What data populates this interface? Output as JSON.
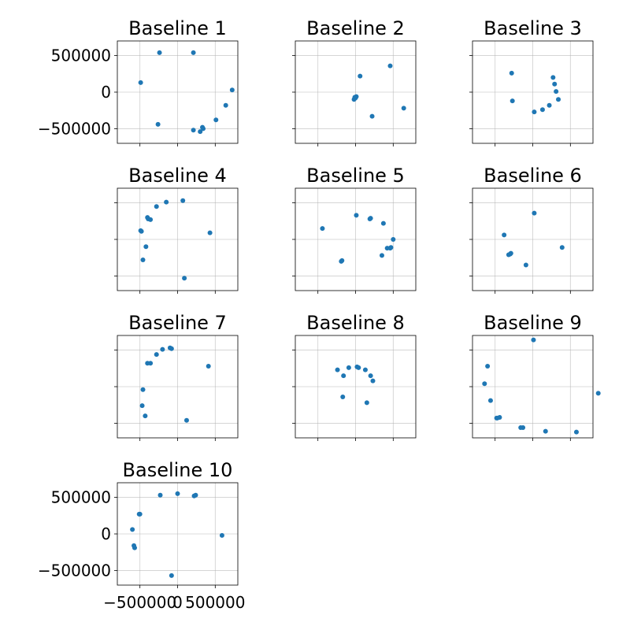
{
  "chart_data": [
    {
      "type": "scatter",
      "title": "Baseline 1",
      "xlim": [
        -800000,
        800000
      ],
      "ylim": [
        -700000,
        700000
      ],
      "grid": true,
      "color": "#1f77b4",
      "xticks": [],
      "yticks": [
        "500000",
        "0",
        "−500000"
      ],
      "x": [
        -240000,
        -490000,
        -260000,
        210000,
        300000,
        510000,
        640000,
        725000,
        210000,
        330000,
        340000
      ],
      "y": [
        540000,
        130000,
        -440000,
        -520000,
        -540000,
        -380000,
        -180000,
        30000,
        540000,
        -480000,
        -500000
      ]
    },
    {
      "type": "scatter",
      "title": "Baseline 2",
      "xlim": [
        -800000,
        800000
      ],
      "ylim": [
        -700000,
        700000
      ],
      "grid": true,
      "color": "#1f77b4",
      "xticks": [],
      "yticks": [],
      "x": [
        60000,
        -20000,
        -10000,
        0,
        10000,
        220000,
        460000,
        640000
      ],
      "y": [
        220000,
        -100000,
        -70000,
        -80000,
        -60000,
        -330000,
        360000,
        -220000
      ]
    },
    {
      "type": "scatter",
      "title": "Baseline 3",
      "xlim": [
        -800000,
        800000
      ],
      "ylim": [
        -700000,
        700000
      ],
      "grid": true,
      "color": "#1f77b4",
      "xticks": [],
      "yticks": [],
      "x": [
        -280000,
        -270000,
        20000,
        130000,
        220000,
        270000,
        290000,
        310000,
        340000
      ],
      "y": [
        260000,
        -120000,
        -270000,
        -240000,
        -180000,
        200000,
        110000,
        10000,
        -100000
      ]
    },
    {
      "type": "scatter",
      "title": "Baseline 4",
      "xlim": [
        -800000,
        800000
      ],
      "ylim": [
        -700000,
        700000
      ],
      "grid": true,
      "color": "#1f77b4",
      "xticks": [],
      "yticks": [],
      "x": [
        -280000,
        -150000,
        -480000,
        -420000,
        -400000,
        -390000,
        -360000,
        -490000,
        -460000,
        70000,
        90000,
        430000
      ],
      "y": [
        450000,
        510000,
        110000,
        -100000,
        300000,
        280000,
        270000,
        120000,
        -280000,
        530000,
        -530000,
        90000
      ]
    },
    {
      "type": "scatter",
      "title": "Baseline 5",
      "xlim": [
        -800000,
        800000
      ],
      "ylim": [
        -700000,
        700000
      ],
      "grid": true,
      "color": "#1f77b4",
      "xticks": [],
      "yticks": [],
      "x": [
        -440000,
        -180000,
        -190000,
        10000,
        200000,
        190000,
        370000,
        350000,
        420000,
        460000,
        470000,
        500000
      ],
      "y": [
        150000,
        -290000,
        -300000,
        330000,
        290000,
        280000,
        220000,
        -220000,
        -120000,
        -120000,
        -110000,
        0
      ]
    },
    {
      "type": "scatter",
      "title": "Baseline 6",
      "xlim": [
        -800000,
        800000
      ],
      "ylim": [
        -700000,
        700000
      ],
      "grid": true,
      "color": "#1f77b4",
      "xticks": [],
      "yticks": [],
      "x": [
        -380000,
        -300000,
        -290000,
        -320000,
        -90000,
        20000,
        390000
      ],
      "y": [
        60000,
        -200000,
        -190000,
        -210000,
        -350000,
        360000,
        -110000
      ]
    },
    {
      "type": "scatter",
      "title": "Baseline 7",
      "xlim": [
        -800000,
        800000
      ],
      "ylim": [
        -700000,
        700000
      ],
      "grid": true,
      "color": "#1f77b4",
      "xticks": [],
      "yticks": [],
      "x": [
        -360000,
        -460000,
        -470000,
        -430000,
        -400000,
        -280000,
        -200000,
        -100000,
        -80000,
        120000,
        410000
      ],
      "y": [
        320000,
        -40000,
        -260000,
        -400000,
        320000,
        440000,
        510000,
        530000,
        520000,
        -460000,
        280000
      ]
    },
    {
      "type": "scatter",
      "title": "Baseline 8",
      "xlim": [
        -800000,
        800000
      ],
      "ylim": [
        -700000,
        700000
      ],
      "grid": true,
      "color": "#1f77b4",
      "xticks": [],
      "yticks": [],
      "x": [
        -160000,
        -240000,
        -170000,
        -90000,
        20000,
        40000,
        130000,
        200000,
        230000,
        150000
      ],
      "y": [
        150000,
        230000,
        -140000,
        260000,
        270000,
        260000,
        230000,
        150000,
        80000,
        -220000
      ]
    },
    {
      "type": "scatter",
      "title": "Baseline 9",
      "xlim": [
        -800000,
        800000
      ],
      "ylim": [
        -700000,
        700000
      ],
      "grid": true,
      "color": "#1f77b4",
      "xticks": [],
      "yticks": [],
      "x": [
        -600000,
        -640000,
        -560000,
        -480000,
        -440000,
        -470000,
        -130000,
        10000,
        580000,
        870000,
        -160000,
        170000
      ],
      "y": [
        280000,
        40000,
        -190000,
        -430000,
        -420000,
        -430000,
        -560000,
        640000,
        -620000,
        -90000,
        -560000,
        -610000
      ]
    },
    {
      "type": "scatter",
      "title": "Baseline 10",
      "xlim": [
        -800000,
        800000
      ],
      "ylim": [
        -700000,
        700000
      ],
      "grid": true,
      "color": "#1f77b4",
      "xticks": [
        "−500000",
        "0",
        "500000"
      ],
      "yticks": [
        "500000",
        "0",
        "−500000"
      ],
      "x": [
        -510000,
        -500000,
        -600000,
        -580000,
        -570000,
        -230000,
        0,
        220000,
        240000,
        590000,
        -80000
      ],
      "y": [
        270000,
        270000,
        60000,
        -160000,
        -190000,
        530000,
        550000,
        520000,
        530000,
        -20000,
        -570000
      ]
    }
  ]
}
